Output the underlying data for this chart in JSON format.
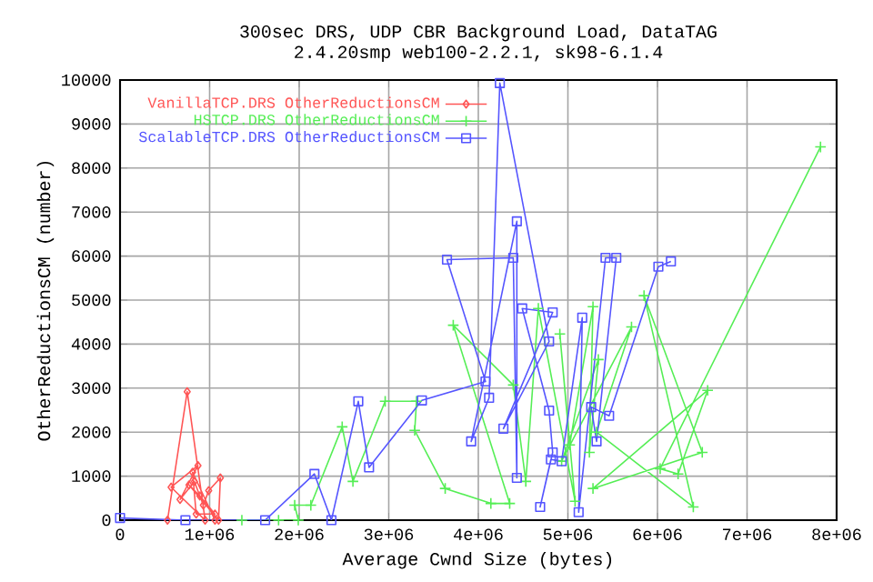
{
  "chart_data": {
    "type": "line",
    "title": "300sec DRS, UDP CBR Background Load, DataTAG",
    "subtitle": "2.4.20smp web100-2.2.1, sk98-6.1.4",
    "xlabel": "Average Cwnd Size (bytes)",
    "ylabel": "OtherReductionsCM (number)",
    "xlim": [
      0,
      8000000
    ],
    "ylim": [
      0,
      10000
    ],
    "xticks": [
      0,
      {
        "value": 1000000,
        "label": "1e+06"
      },
      {
        "value": 2000000,
        "label": "2e+06"
      },
      {
        "value": 3000000,
        "label": "3e+06"
      },
      {
        "value": 4000000,
        "label": "4e+06"
      },
      {
        "value": 5000000,
        "label": "5e+06"
      },
      {
        "value": 6000000,
        "label": "6e+06"
      },
      {
        "value": 7000000,
        "label": "7e+06"
      },
      {
        "value": 8000000,
        "label": "8e+06"
      }
    ],
    "yticks": [
      0,
      1000,
      2000,
      3000,
      4000,
      5000,
      6000,
      7000,
      8000,
      9000,
      10000
    ],
    "grid": true,
    "legend": "top left",
    "series": [
      {
        "name": "VanillaTCP.DRS OtherReductionsCM",
        "color": "#ff5555",
        "marker": "diamond",
        "x": [
          530000,
          750000,
          950000,
          570000,
          870000,
          670000,
          830000,
          930000,
          990000,
          1120000,
          1100000,
          770000,
          890000,
          1060000,
          850000,
          810000,
          1060000
        ],
        "values": [
          0,
          2920,
          0,
          750,
          1240,
          470,
          880,
          340,
          670,
          960,
          0,
          800,
          550,
          140,
          140,
          1090,
          0
        ]
      },
      {
        "name": "HSTCP.DRS OtherReductionsCM",
        "color": "#55ee55",
        "marker": "cross",
        "x": [
          1360000,
          1770000,
          1990000,
          1950000,
          2130000,
          2480000,
          2600000,
          2960000,
          3310000,
          3290000,
          3630000,
          4140000,
          4350000,
          3720000,
          4390000,
          4530000,
          4670000,
          5080000,
          4910000,
          5020000,
          5280000,
          5240000,
          5340000,
          4930000,
          5710000,
          5320000,
          6400000,
          5850000,
          6500000,
          5280000,
          6560000,
          6230000,
          6030000,
          7820000
        ],
        "values": [
          0,
          0,
          0,
          340,
          340,
          2120,
          880,
          2700,
          2700,
          2040,
          720,
          380,
          380,
          4430,
          3070,
          880,
          4810,
          430,
          4230,
          1710,
          4850,
          1540,
          3650,
          1340,
          4390,
          2000,
          300,
          5100,
          1540,
          720,
          2950,
          1050,
          1170,
          8480
        ]
      },
      {
        "name": "ScalableTCP.DRS OtherReductionsCM",
        "color": "#5555ff",
        "marker": "square",
        "x": [
          0,
          730000,
          1620000,
          2170000,
          2360000,
          2660000,
          2780000,
          3370000,
          4080000,
          3650000,
          4390000,
          4430000,
          4430000,
          3920000,
          4120000,
          4240000,
          4790000,
          4280000,
          4830000,
          4490000,
          4790000,
          4830000,
          4690000,
          4810000,
          4930000,
          5160000,
          5120000,
          5420000,
          5540000,
          5320000,
          5260000,
          5460000,
          6010000,
          6150000
        ],
        "values": [
          50,
          0,
          0,
          1050,
          0,
          2700,
          1200,
          2720,
          3150,
          5920,
          5960,
          960,
          6790,
          1790,
          2780,
          9930,
          4060,
          2080,
          4720,
          4810,
          2490,
          1540,
          300,
          1380,
          1340,
          4600,
          180,
          5960,
          5960,
          1790,
          2570,
          2370,
          5760,
          5880
        ]
      }
    ]
  }
}
